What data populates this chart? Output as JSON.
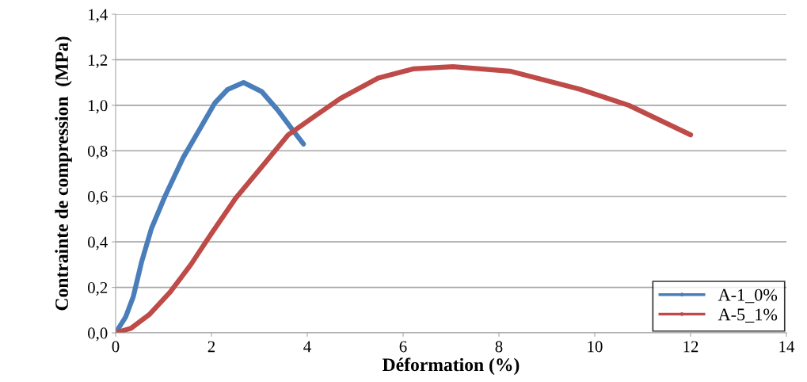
{
  "chart_data": {
    "type": "line",
    "xlabel": "Déformation (%)",
    "ylabel": "Contrainte de compression  (MPa)",
    "xlim": [
      0,
      14
    ],
    "xticks": [
      0,
      2,
      4,
      6,
      8,
      10,
      12,
      14
    ],
    "ylim": [
      0,
      1.4
    ],
    "yticks": [
      {
        "value": 0,
        "label": "0,0"
      },
      {
        "value": 0.2,
        "label": "0,2"
      },
      {
        "value": 0.4,
        "label": "0,4"
      },
      {
        "value": 0.6,
        "label": "0,6"
      },
      {
        "value": 0.8,
        "label": "0,8"
      },
      {
        "value": 1.0,
        "label": "1,0"
      },
      {
        "value": 1.2,
        "label": "1,2"
      },
      {
        "value": 1.4,
        "label": "1,4"
      }
    ],
    "grid": "y",
    "legend": "bottom right",
    "line_style": "solid",
    "series": [
      {
        "name": "A-1_0%",
        "color": "#4a7ebb",
        "x": [
          0,
          0.21,
          0.37,
          0.54,
          0.75,
          1.03,
          1.41,
          1.74,
          2.07,
          2.34,
          2.67,
          3.05,
          3.38,
          3.7,
          3.92
        ],
        "values": [
          0,
          0.07,
          0.16,
          0.31,
          0.46,
          0.6,
          0.77,
          0.89,
          1.01,
          1.07,
          1.1,
          1.06,
          0.98,
          0.89,
          0.83
        ]
      },
      {
        "name": "A-5_1%",
        "color": "#be4b48",
        "x": [
          0,
          0.32,
          0.7,
          1.14,
          1.57,
          2.01,
          2.5,
          3.05,
          3.6,
          4.14,
          4.69,
          5.48,
          6.21,
          7.04,
          8.23,
          9.7,
          10.71,
          12.0
        ],
        "values": [
          0,
          0.02,
          0.08,
          0.18,
          0.3,
          0.44,
          0.59,
          0.73,
          0.87,
          0.95,
          1.03,
          1.12,
          1.16,
          1.17,
          1.15,
          1.07,
          1.0,
          0.87
        ]
      }
    ]
  }
}
